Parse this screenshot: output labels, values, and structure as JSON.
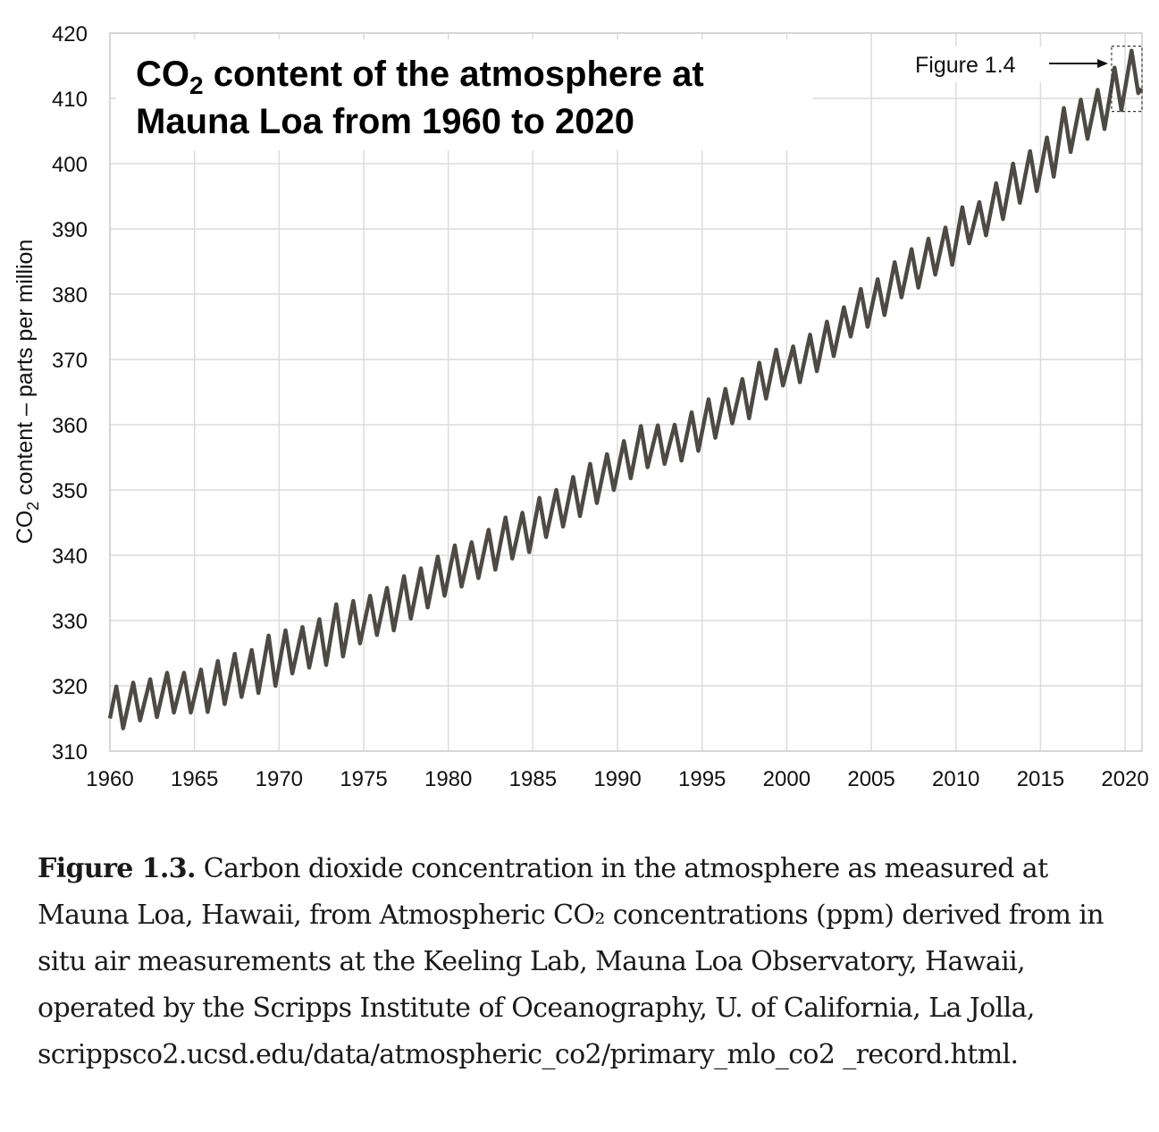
{
  "caption": {
    "label": "Figure 1.3.",
    "text": " Carbon dioxide concentration in the atmosphere as measured at Mauna Loa, Hawaii, from Atmospheric CO₂ concentrations (ppm) derived from in situ air measurements at the Keeling Lab, Mauna Loa Observatory, Hawaii, operated by the Scripps Institute of Oceanography, U. of California, La Jolla, scrippsco2.ucsd.edu/data/atmospheric_co2/primary_mlo_co2 _record.html."
  },
  "chart_data": {
    "type": "line",
    "title_line1_pre": "CO",
    "title_line1_sub": "2",
    "title_line1_post": " content of the atmosphere at",
    "title_line2": "Mauna Loa from 1960 to 2020",
    "ylabel_pre": "CO",
    "ylabel_sub": "2",
    "ylabel_post": " content – parts per million",
    "xlabel": "",
    "xlim": [
      1960,
      2021
    ],
    "ylim": [
      310,
      420
    ],
    "x_ticks": [
      "1960",
      "1965",
      "1970",
      "1975",
      "1980",
      "1985",
      "1990",
      "1995",
      "2000",
      "2005",
      "2010",
      "2015",
      "2020"
    ],
    "y_ticks": [
      "310",
      "320",
      "330",
      "340",
      "350",
      "360",
      "370",
      "380",
      "390",
      "400",
      "410",
      "420"
    ],
    "grid": true,
    "line_color": "#4d4a45",
    "annotation": {
      "label": "Figure 1.4",
      "box_x": [
        2019.2,
        2021.0
      ],
      "box_y": [
        408,
        418
      ]
    },
    "series": [
      {
        "annual_peak": [
          [
            1960,
            319.9
          ],
          [
            1961,
            320.5
          ],
          [
            1962,
            321.0
          ],
          [
            1963,
            322.0
          ],
          [
            1964,
            322.0
          ],
          [
            1965,
            322.5
          ],
          [
            1966,
            323.8
          ],
          [
            1967,
            324.9
          ],
          [
            1968,
            325.5
          ],
          [
            1969,
            327.7
          ],
          [
            1970,
            328.5
          ],
          [
            1971,
            329.0
          ],
          [
            1972,
            330.2
          ],
          [
            1973,
            332.5
          ],
          [
            1974,
            333.0
          ],
          [
            1975,
            333.8
          ],
          [
            1976,
            335.0
          ],
          [
            1977,
            336.8
          ],
          [
            1978,
            338.0
          ],
          [
            1979,
            339.8
          ],
          [
            1980,
            341.5
          ],
          [
            1981,
            342.0
          ],
          [
            1982,
            343.9
          ],
          [
            1983,
            345.8
          ],
          [
            1984,
            346.5
          ],
          [
            1985,
            348.8
          ],
          [
            1986,
            350.0
          ],
          [
            1987,
            352.0
          ],
          [
            1988,
            354.0
          ],
          [
            1989,
            355.5
          ],
          [
            1990,
            357.5
          ],
          [
            1991,
            359.8
          ],
          [
            1992,
            359.9
          ],
          [
            1993,
            360.0
          ],
          [
            1994,
            361.9
          ],
          [
            1995,
            363.9
          ],
          [
            1996,
            365.5
          ],
          [
            1997,
            367.0
          ],
          [
            1998,
            369.5
          ],
          [
            1999,
            371.5
          ],
          [
            2000,
            372.0
          ],
          [
            2001,
            373.8
          ],
          [
            2002,
            375.8
          ],
          [
            2003,
            378.0
          ],
          [
            2004,
            380.8
          ],
          [
            2005,
            382.3
          ],
          [
            2006,
            384.9
          ],
          [
            2007,
            386.9
          ],
          [
            2008,
            388.5
          ],
          [
            2009,
            390.2
          ],
          [
            2010,
            393.3
          ],
          [
            2011,
            394.1
          ],
          [
            2012,
            397.0
          ],
          [
            2013,
            400.0
          ],
          [
            2014,
            401.9
          ],
          [
            2015,
            404.0
          ],
          [
            2016,
            408.5
          ],
          [
            2017,
            409.8
          ],
          [
            2018,
            411.3
          ],
          [
            2019,
            414.7
          ],
          [
            2020,
            417.3
          ]
        ],
        "annual_trough": [
          [
            1960,
            313.5
          ],
          [
            1961,
            314.7
          ],
          [
            1962,
            315.2
          ],
          [
            1963,
            315.9
          ],
          [
            1964,
            315.9
          ],
          [
            1965,
            316.0
          ],
          [
            1966,
            317.2
          ],
          [
            1967,
            318.3
          ],
          [
            1968,
            318.9
          ],
          [
            1969,
            320.0
          ],
          [
            1970,
            321.9
          ],
          [
            1971,
            322.8
          ],
          [
            1972,
            323.2
          ],
          [
            1973,
            324.5
          ],
          [
            1974,
            326.5
          ],
          [
            1975,
            327.8
          ],
          [
            1976,
            328.5
          ],
          [
            1977,
            330.3
          ],
          [
            1978,
            332.0
          ],
          [
            1979,
            333.8
          ],
          [
            1980,
            335.2
          ],
          [
            1981,
            336.5
          ],
          [
            1982,
            337.8
          ],
          [
            1983,
            339.5
          ],
          [
            1984,
            340.5
          ],
          [
            1985,
            342.8
          ],
          [
            1986,
            344.4
          ],
          [
            1987,
            346.0
          ],
          [
            1988,
            348.0
          ],
          [
            1989,
            350.0
          ],
          [
            1990,
            351.8
          ],
          [
            1991,
            353.5
          ],
          [
            1992,
            354.0
          ],
          [
            1993,
            354.5
          ],
          [
            1994,
            356.0
          ],
          [
            1995,
            358.0
          ],
          [
            1996,
            360.2
          ],
          [
            1997,
            361.0
          ],
          [
            1998,
            364.0
          ],
          [
            1999,
            366.0
          ],
          [
            2000,
            366.5
          ],
          [
            2001,
            368.2
          ],
          [
            2002,
            370.5
          ],
          [
            2003,
            373.5
          ],
          [
            2004,
            375.0
          ],
          [
            2005,
            376.8
          ],
          [
            2006,
            379.5
          ],
          [
            2007,
            381.0
          ],
          [
            2008,
            383.0
          ],
          [
            2009,
            384.5
          ],
          [
            2010,
            387.8
          ],
          [
            2011,
            389.0
          ],
          [
            2012,
            391.5
          ],
          [
            2013,
            394.0
          ],
          [
            2014,
            395.8
          ],
          [
            2015,
            398.0
          ],
          [
            2016,
            401.8
          ],
          [
            2017,
            403.8
          ],
          [
            2018,
            405.3
          ],
          [
            2019,
            408.2
          ],
          [
            2020,
            410.8
          ]
        ]
      }
    ]
  }
}
